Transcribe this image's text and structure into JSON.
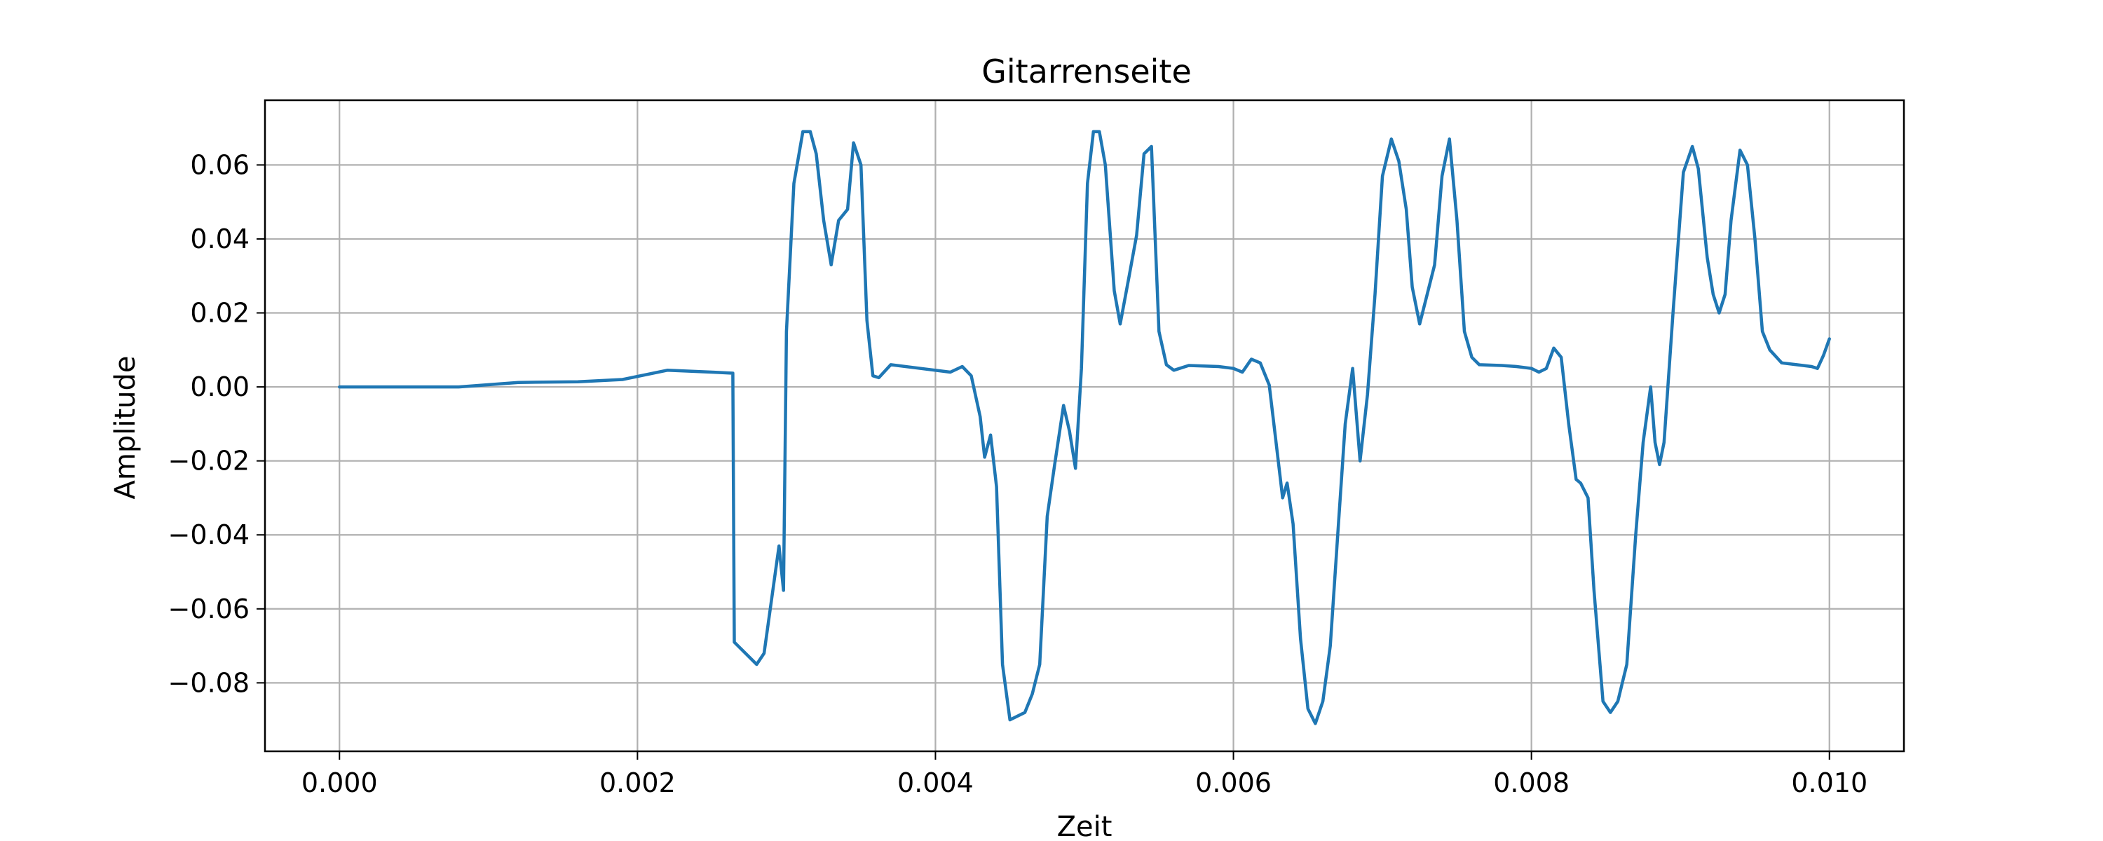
{
  "chart_data": {
    "type": "line",
    "title": "Gitarrenseite",
    "xlabel": "Zeit",
    "ylabel": "Amplitude",
    "xlim": [
      -0.0005,
      0.0105
    ],
    "ylim": [
      -0.0985,
      0.0775
    ],
    "grid": true,
    "xticks": [
      0,
      0.002,
      0.004,
      0.006,
      0.008,
      0.01
    ],
    "xtick_labels": [
      "0.000",
      "0.002",
      "0.004",
      "0.006",
      "0.008",
      "0.010"
    ],
    "yticks": [
      0.06,
      0.04,
      0.02,
      0.0,
      -0.02,
      -0.04,
      -0.06,
      -0.08
    ],
    "ytick_labels": [
      "0.06",
      "0.04",
      "0.02",
      "0.00",
      "−0.02",
      "−0.04",
      "−0.06",
      "−0.08"
    ],
    "series": [
      {
        "color": "#1f77b4",
        "points": [
          [
            0.0,
            0.0
          ],
          [
            0.0008,
            0.0
          ],
          [
            0.0012,
            0.0012
          ],
          [
            0.0016,
            0.0014
          ],
          [
            0.0019,
            0.002
          ],
          [
            0.0022,
            0.0045
          ],
          [
            0.0025,
            0.004
          ],
          [
            0.00264,
            0.0037
          ],
          [
            0.00265,
            -0.069
          ],
          [
            0.0028,
            -0.075
          ],
          [
            0.00285,
            -0.072
          ],
          [
            0.00295,
            -0.043
          ],
          [
            0.00298,
            -0.055
          ],
          [
            0.003,
            0.015
          ],
          [
            0.00305,
            0.055
          ],
          [
            0.00311,
            0.069
          ],
          [
            0.00316,
            0.069
          ],
          [
            0.0032,
            0.063
          ],
          [
            0.00325,
            0.045
          ],
          [
            0.0033,
            0.033
          ],
          [
            0.00335,
            0.045
          ],
          [
            0.00341,
            0.048
          ],
          [
            0.00345,
            0.066
          ],
          [
            0.0035,
            0.06
          ],
          [
            0.00354,
            0.018
          ],
          [
            0.00358,
            0.003
          ],
          [
            0.00362,
            0.0025
          ],
          [
            0.0037,
            0.006
          ],
          [
            0.0039,
            0.005
          ],
          [
            0.0041,
            0.004
          ],
          [
            0.00418,
            0.0055
          ],
          [
            0.00424,
            0.003
          ],
          [
            0.0043,
            -0.008
          ],
          [
            0.00433,
            -0.019
          ],
          [
            0.00437,
            -0.013
          ],
          [
            0.00441,
            -0.027
          ],
          [
            0.00445,
            -0.075
          ],
          [
            0.0045,
            -0.09
          ],
          [
            0.0046,
            -0.088
          ],
          [
            0.00465,
            -0.083
          ],
          [
            0.0047,
            -0.075
          ],
          [
            0.00475,
            -0.035
          ],
          [
            0.0048,
            -0.021
          ],
          [
            0.00486,
            -0.005
          ],
          [
            0.0049,
            -0.012
          ],
          [
            0.00494,
            -0.022
          ],
          [
            0.00498,
            0.005
          ],
          [
            0.00502,
            0.055
          ],
          [
            0.00506,
            0.069
          ],
          [
            0.0051,
            0.069
          ],
          [
            0.00514,
            0.06
          ],
          [
            0.0052,
            0.026
          ],
          [
            0.00524,
            0.017
          ],
          [
            0.0053,
            0.03
          ],
          [
            0.00535,
            0.041
          ],
          [
            0.0054,
            0.063
          ],
          [
            0.00545,
            0.065
          ],
          [
            0.0055,
            0.015
          ],
          [
            0.00555,
            0.006
          ],
          [
            0.0056,
            0.0045
          ],
          [
            0.0057,
            0.0058
          ],
          [
            0.0059,
            0.0055
          ],
          [
            0.006,
            0.005
          ],
          [
            0.00606,
            0.004
          ],
          [
            0.00612,
            0.0075
          ],
          [
            0.00618,
            0.0065
          ],
          [
            0.00624,
            0.0005
          ],
          [
            0.00628,
            -0.013
          ],
          [
            0.00633,
            -0.03
          ],
          [
            0.00636,
            -0.026
          ],
          [
            0.0064,
            -0.037
          ],
          [
            0.00645,
            -0.068
          ],
          [
            0.0065,
            -0.087
          ],
          [
            0.00655,
            -0.091
          ],
          [
            0.0066,
            -0.085
          ],
          [
            0.00665,
            -0.07
          ],
          [
            0.0067,
            -0.04
          ],
          [
            0.00675,
            -0.01
          ],
          [
            0.0068,
            0.005
          ],
          [
            0.00685,
            -0.02
          ],
          [
            0.0069,
            -0.002
          ],
          [
            0.00695,
            0.025
          ],
          [
            0.007,
            0.057
          ],
          [
            0.00706,
            0.067
          ],
          [
            0.00711,
            0.061
          ],
          [
            0.00716,
            0.048
          ],
          [
            0.0072,
            0.027
          ],
          [
            0.00725,
            0.017
          ],
          [
            0.0073,
            0.025
          ],
          [
            0.00735,
            0.033
          ],
          [
            0.0074,
            0.057
          ],
          [
            0.00745,
            0.067
          ],
          [
            0.0075,
            0.045
          ],
          [
            0.00755,
            0.015
          ],
          [
            0.0076,
            0.008
          ],
          [
            0.00765,
            0.006
          ],
          [
            0.0078,
            0.0058
          ],
          [
            0.0079,
            0.0055
          ],
          [
            0.008,
            0.005
          ],
          [
            0.00805,
            0.004
          ],
          [
            0.0081,
            0.005
          ],
          [
            0.00815,
            0.0105
          ],
          [
            0.0082,
            0.008
          ],
          [
            0.00825,
            -0.01
          ],
          [
            0.0083,
            -0.025
          ],
          [
            0.00833,
            -0.026
          ],
          [
            0.00838,
            -0.03
          ],
          [
            0.00842,
            -0.055
          ],
          [
            0.00848,
            -0.085
          ],
          [
            0.00853,
            -0.088
          ],
          [
            0.00858,
            -0.085
          ],
          [
            0.00864,
            -0.075
          ],
          [
            0.0087,
            -0.04
          ],
          [
            0.00875,
            -0.015
          ],
          [
            0.0088,
            0.0
          ],
          [
            0.00883,
            -0.015
          ],
          [
            0.00886,
            -0.021
          ],
          [
            0.00889,
            -0.015
          ],
          [
            0.00895,
            0.02
          ],
          [
            0.00902,
            0.058
          ],
          [
            0.00908,
            0.065
          ],
          [
            0.00912,
            0.059
          ],
          [
            0.00918,
            0.035
          ],
          [
            0.00922,
            0.025
          ],
          [
            0.00926,
            0.02
          ],
          [
            0.0093,
            0.025
          ],
          [
            0.00934,
            0.045
          ],
          [
            0.0094,
            0.064
          ],
          [
            0.00945,
            0.06
          ],
          [
            0.0095,
            0.04
          ],
          [
            0.00955,
            0.015
          ],
          [
            0.0096,
            0.01
          ],
          [
            0.00968,
            0.0065
          ],
          [
            0.00978,
            0.006
          ],
          [
            0.00988,
            0.0055
          ],
          [
            0.00992,
            0.005
          ],
          [
            0.00996,
            0.0085
          ],
          [
            0.01,
            0.013
          ]
        ]
      }
    ]
  }
}
